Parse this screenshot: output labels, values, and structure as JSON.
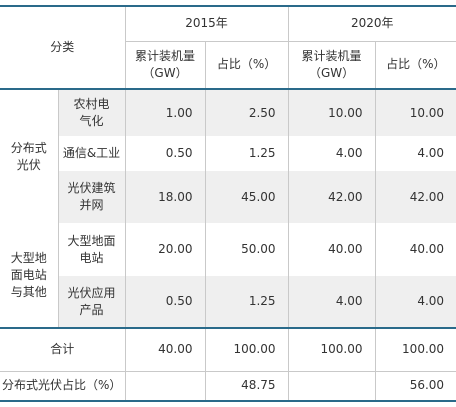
{
  "table": {
    "header": {
      "category": "分类",
      "years": [
        "2015年",
        "2020年"
      ],
      "columns": [
        "累计装机量（GW）",
        "占比（%）",
        "累计装机量（GW）",
        "占比（%）"
      ]
    },
    "groups": [
      {
        "label": "分布式\n光伏",
        "rows": [
          {
            "name": "农村电\n气化",
            "values": [
              "1.00",
              "2.50",
              "10.00",
              "10.00"
            ]
          },
          {
            "name": "通信&工业",
            "values": [
              "0.50",
              "1.25",
              "4.00",
              "4.00"
            ]
          },
          {
            "name": "光伏建筑\n并网",
            "values": [
              "18.00",
              "45.00",
              "42.00",
              "42.00"
            ]
          }
        ]
      },
      {
        "label": "大型地\n面电站\n与其他",
        "rows": [
          {
            "name": "大型地面\n电站",
            "values": [
              "20.00",
              "50.00",
              "40.00",
              "40.00"
            ]
          },
          {
            "name": "光伏应用\n产品",
            "values": [
              "0.50",
              "1.25",
              "4.00",
              "4.00"
            ]
          }
        ]
      }
    ],
    "total": {
      "label": "合计",
      "values": [
        "40.00",
        "100.00",
        "100.00",
        "100.00"
      ]
    },
    "share": {
      "label": "分布式光伏占比（%）",
      "values": [
        "48.75",
        "56.00"
      ]
    }
  }
}
